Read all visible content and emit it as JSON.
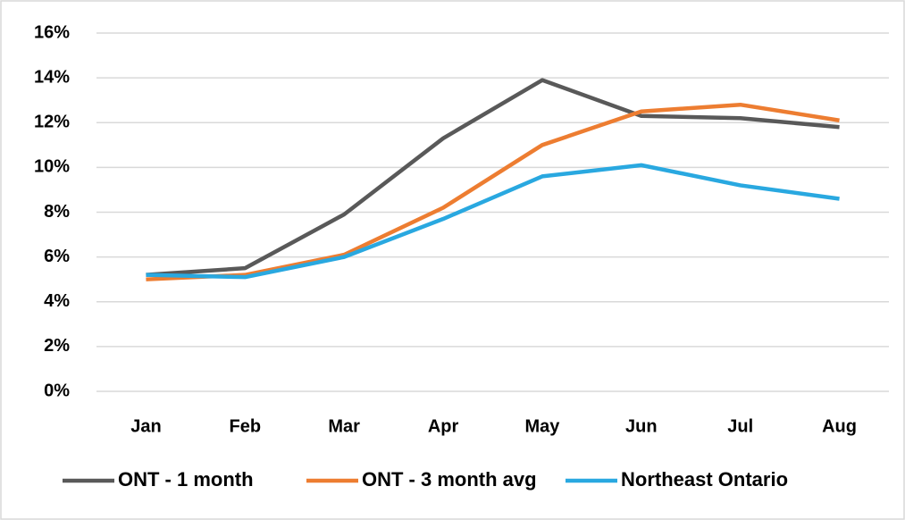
{
  "chart_data": {
    "type": "line",
    "categories": [
      "Jan",
      "Feb",
      "Mar",
      "Apr",
      "May",
      "Jun",
      "Jul",
      "Aug"
    ],
    "series": [
      {
        "name": "ONT - 1 month",
        "color": "#595959",
        "values": [
          5.2,
          5.5,
          7.9,
          11.3,
          13.9,
          12.3,
          12.2,
          11.8
        ]
      },
      {
        "name": "ONT - 3 month avg",
        "color": "#ed7d31",
        "values": [
          5.0,
          5.2,
          6.1,
          8.2,
          11.0,
          12.5,
          12.8,
          12.1
        ]
      },
      {
        "name": "Northeast Ontario",
        "color": "#29a8e0",
        "values": [
          5.2,
          5.1,
          6.0,
          7.7,
          9.6,
          10.1,
          9.2,
          8.6
        ]
      }
    ],
    "ylim": [
      0,
      16
    ],
    "yticks": [
      {
        "value": 0,
        "label": "0%"
      },
      {
        "value": 2,
        "label": "2%"
      },
      {
        "value": 4,
        "label": "4%"
      },
      {
        "value": 6,
        "label": "6%"
      },
      {
        "value": 8,
        "label": "8%"
      },
      {
        "value": 10,
        "label": "10%"
      },
      {
        "value": 12,
        "label": "12%"
      },
      {
        "value": 14,
        "label": "14%"
      },
      {
        "value": 16,
        "label": "16%"
      }
    ],
    "grid": true,
    "legend": "bottom"
  }
}
